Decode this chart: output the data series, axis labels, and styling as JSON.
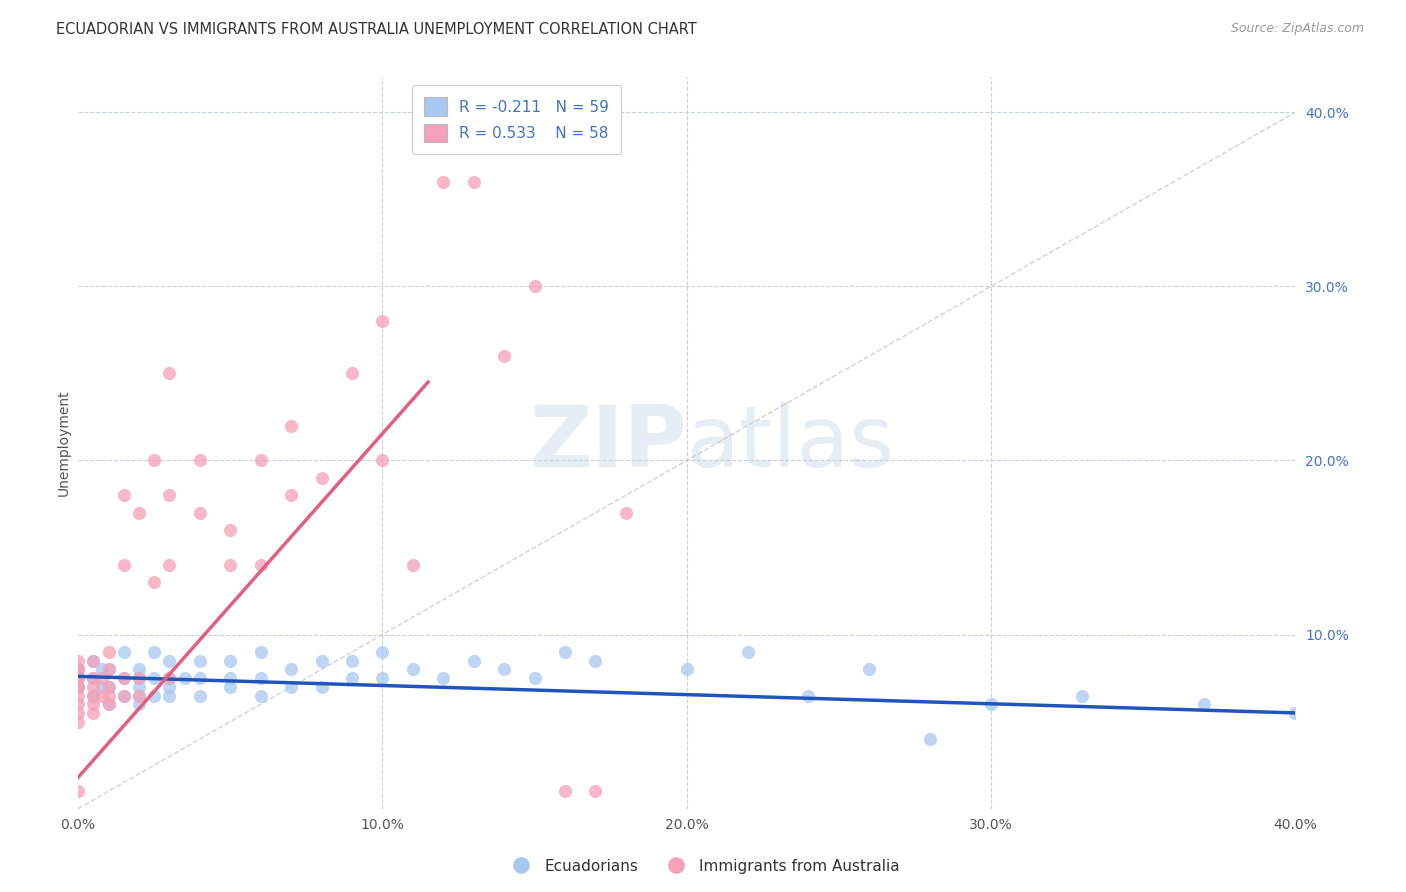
{
  "title": "ECUADORIAN VS IMMIGRANTS FROM AUSTRALIA UNEMPLOYMENT CORRELATION CHART",
  "source": "Source: ZipAtlas.com",
  "xlabel": "",
  "ylabel": "Unemployment",
  "xlim": [
    0.0,
    0.4
  ],
  "ylim": [
    0.0,
    0.42
  ],
  "xticks": [
    0.0,
    0.1,
    0.2,
    0.3,
    0.4
  ],
  "yticks_right": [
    0.1,
    0.2,
    0.3,
    0.4
  ],
  "blue_R": -0.211,
  "blue_N": 59,
  "pink_R": 0.533,
  "pink_N": 58,
  "blue_color": "#a8c8f0",
  "pink_color": "#f4a0b8",
  "blue_line_color": "#2255bb",
  "pink_line_color": "#e06080",
  "watermark_zip": "ZIP",
  "watermark_atlas": "atlas",
  "grid_color": "#c8d0d8",
  "bg_color": "#ffffff",
  "title_fontsize": 10.5,
  "axis_label_color": "#4472c4",
  "legend_label_color": "#4472c4",
  "blue_scatter_x": [
    0.0,
    0.0,
    0.005,
    0.005,
    0.005,
    0.008,
    0.008,
    0.01,
    0.01,
    0.01,
    0.015,
    0.015,
    0.015,
    0.02,
    0.02,
    0.02,
    0.02,
    0.02,
    0.025,
    0.025,
    0.025,
    0.03,
    0.03,
    0.03,
    0.03,
    0.035,
    0.04,
    0.04,
    0.04,
    0.05,
    0.05,
    0.05,
    0.06,
    0.06,
    0.06,
    0.07,
    0.07,
    0.08,
    0.08,
    0.09,
    0.09,
    0.1,
    0.1,
    0.11,
    0.12,
    0.13,
    0.14,
    0.15,
    0.16,
    0.17,
    0.2,
    0.22,
    0.24,
    0.26,
    0.28,
    0.3,
    0.33,
    0.37,
    0.4
  ],
  "blue_scatter_y": [
    0.07,
    0.08,
    0.065,
    0.075,
    0.085,
    0.07,
    0.08,
    0.06,
    0.07,
    0.08,
    0.065,
    0.075,
    0.09,
    0.06,
    0.065,
    0.07,
    0.075,
    0.08,
    0.065,
    0.075,
    0.09,
    0.065,
    0.07,
    0.075,
    0.085,
    0.075,
    0.065,
    0.075,
    0.085,
    0.07,
    0.075,
    0.085,
    0.065,
    0.075,
    0.09,
    0.07,
    0.08,
    0.07,
    0.085,
    0.075,
    0.085,
    0.075,
    0.09,
    0.08,
    0.075,
    0.085,
    0.08,
    0.075,
    0.09,
    0.085,
    0.08,
    0.09,
    0.065,
    0.08,
    0.04,
    0.06,
    0.065,
    0.06,
    0.055
  ],
  "pink_scatter_x": [
    0.0,
    0.0,
    0.0,
    0.0,
    0.0,
    0.0,
    0.0,
    0.0,
    0.0,
    0.0,
    0.0,
    0.0,
    0.005,
    0.005,
    0.005,
    0.005,
    0.005,
    0.005,
    0.008,
    0.008,
    0.01,
    0.01,
    0.01,
    0.01,
    0.01,
    0.015,
    0.015,
    0.015,
    0.015,
    0.02,
    0.02,
    0.02,
    0.025,
    0.025,
    0.03,
    0.03,
    0.03,
    0.03,
    0.04,
    0.04,
    0.05,
    0.05,
    0.06,
    0.06,
    0.07,
    0.07,
    0.08,
    0.09,
    0.1,
    0.1,
    0.11,
    0.12,
    0.13,
    0.14,
    0.15,
    0.16,
    0.17,
    0.18
  ],
  "pink_scatter_y": [
    0.05,
    0.055,
    0.06,
    0.065,
    0.07,
    0.07,
    0.075,
    0.075,
    0.08,
    0.08,
    0.085,
    0.01,
    0.055,
    0.06,
    0.065,
    0.07,
    0.075,
    0.085,
    0.065,
    0.075,
    0.06,
    0.065,
    0.07,
    0.08,
    0.09,
    0.065,
    0.075,
    0.14,
    0.18,
    0.065,
    0.075,
    0.17,
    0.13,
    0.2,
    0.075,
    0.14,
    0.18,
    0.25,
    0.17,
    0.2,
    0.14,
    0.16,
    0.14,
    0.2,
    0.18,
    0.22,
    0.19,
    0.25,
    0.2,
    0.28,
    0.14,
    0.36,
    0.36,
    0.26,
    0.3,
    0.01,
    0.01,
    0.17
  ],
  "blue_line_x0": 0.0,
  "blue_line_x1": 0.4,
  "blue_line_y0": 0.076,
  "blue_line_y1": 0.055,
  "pink_line_x0": 0.0,
  "pink_line_x1": 0.115,
  "pink_line_y0": 0.018,
  "pink_line_y1": 0.245
}
